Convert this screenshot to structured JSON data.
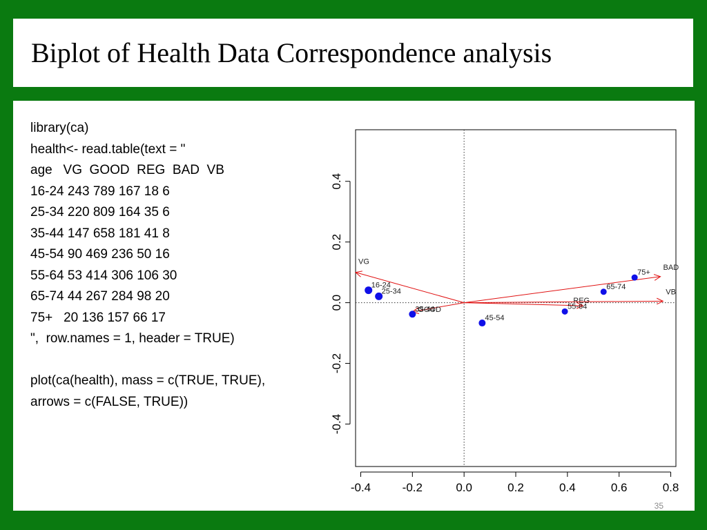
{
  "slide": {
    "title": "Biplot of Health Data Correspondence analysis",
    "code_lines": [
      "library(ca)",
      "health<- read.table(text = \"",
      "age   VG  GOOD  REG  BAD  VB",
      "16-24 243 789 167 18 6",
      "25-34 220 809 164 35 6",
      "35-44 147 658 181 41 8",
      "45-54 90 469 236 50 16",
      "55-64 53 414 306 106 30",
      "65-74 44 267 284 98 20",
      "75+   20 136 157 66 17",
      "\",  row.names = 1, header = TRUE)",
      "",
      "plot(ca(health), mass = c(TRUE, TRUE),",
      "arrows = c(FALSE, TRUE))"
    ],
    "slide_number": "35"
  },
  "chart_data": {
    "type": "scatter",
    "xlim": [
      -0.42,
      0.82
    ],
    "ylim": [
      -0.54,
      0.57
    ],
    "x_ticks": [
      -0.4,
      -0.2,
      0.0,
      0.2,
      0.4,
      0.6,
      0.8
    ],
    "y_ticks": [
      -0.4,
      -0.2,
      0.0,
      0.2,
      0.4
    ],
    "x_tick_labels": [
      "-0.4",
      "-0.2",
      "0.0",
      "0.2",
      "0.4",
      "0.6",
      "0.8"
    ],
    "y_tick_labels": [
      "-0.4",
      "-0.2",
      "0.0",
      "0.2",
      "0.4"
    ],
    "reference_lines": {
      "x": 0,
      "y": 0,
      "style": "dotted"
    },
    "colors": {
      "rows": "#1010e8",
      "arrows": "#e01010",
      "text": "#222222"
    },
    "row_points": [
      {
        "label": "16-24",
        "x": -0.37,
        "y": 0.041
      },
      {
        "label": "25-34",
        "x": -0.33,
        "y": 0.021
      },
      {
        "label": "35-44",
        "x": -0.2,
        "y": -0.038
      },
      {
        "label": "45-54",
        "x": 0.07,
        "y": -0.067
      },
      {
        "label": "55-64",
        "x": 0.39,
        "y": -0.029
      },
      {
        "label": "65-74",
        "x": 0.54,
        "y": 0.036
      },
      {
        "label": "75+",
        "x": 0.66,
        "y": 0.083
      }
    ],
    "column_arrows": [
      {
        "label": "VG",
        "x": -0.42,
        "y": 0.1
      },
      {
        "label": "GOOD",
        "x": -0.2,
        "y": -0.03
      },
      {
        "label": "REG",
        "x": 0.46,
        "y": -0.01
      },
      {
        "label": "BAD",
        "x": 0.76,
        "y": 0.086
      },
      {
        "label": "VB",
        "x": 0.77,
        "y": 0.005
      }
    ]
  }
}
